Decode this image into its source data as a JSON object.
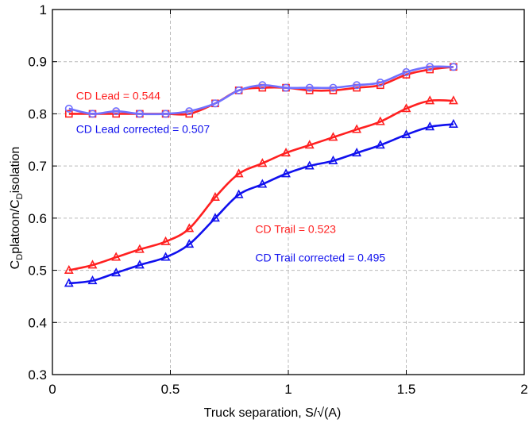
{
  "chart_data": {
    "type": "line",
    "title": "",
    "xlabel": "Truck separation,   S/√(A)",
    "ylabel": "CDplatoon/CDisolation",
    "ylabel_parts": {
      "c1": "C",
      "s1": "D",
      "mid": "platoon/C",
      "s2": "D",
      "end": "isolation"
    },
    "xlim": [
      0,
      2
    ],
    "ylim": [
      0.3,
      1.0
    ],
    "xticks": [
      0,
      0.5,
      1,
      1.5,
      2
    ],
    "xtick_labels": [
      "0",
      "0.5",
      "1",
      "1.5",
      "2"
    ],
    "yticks": [
      0.3,
      0.4,
      0.5,
      0.6,
      0.7,
      0.8,
      0.9,
      1.0
    ],
    "ytick_labels": [
      "0.3",
      "0.4",
      "0.5",
      "0.6",
      "0.7",
      "0.8",
      "0.9",
      "1"
    ],
    "grid": true,
    "colors": {
      "red": "#ff2020",
      "blue": "#1010ee",
      "lightblue": "#7070ff",
      "grid": "#bbbbbb"
    },
    "series": [
      {
        "id": "lead",
        "color": "red",
        "marker": "square",
        "x": [
          0.07,
          0.17,
          0.27,
          0.37,
          0.48,
          0.58,
          0.69,
          0.79,
          0.89,
          0.99,
          1.09,
          1.19,
          1.29,
          1.39,
          1.5,
          1.6,
          1.7
        ],
        "y": [
          0.8,
          0.8,
          0.8,
          0.8,
          0.8,
          0.8,
          0.82,
          0.845,
          0.85,
          0.85,
          0.845,
          0.845,
          0.85,
          0.855,
          0.875,
          0.885,
          0.89
        ]
      },
      {
        "id": "lead-corrected",
        "color": "lightblue",
        "marker": "circle",
        "x": [
          0.07,
          0.17,
          0.27,
          0.37,
          0.48,
          0.58,
          0.69,
          0.79,
          0.89,
          0.99,
          1.09,
          1.19,
          1.29,
          1.39,
          1.5,
          1.6,
          1.7
        ],
        "y": [
          0.81,
          0.8,
          0.805,
          0.8,
          0.8,
          0.805,
          0.82,
          0.845,
          0.855,
          0.85,
          0.85,
          0.85,
          0.855,
          0.86,
          0.88,
          0.89,
          0.89
        ]
      },
      {
        "id": "trail",
        "color": "red",
        "marker": "triangle",
        "x": [
          0.07,
          0.17,
          0.27,
          0.37,
          0.48,
          0.58,
          0.69,
          0.79,
          0.89,
          0.99,
          1.09,
          1.19,
          1.29,
          1.39,
          1.5,
          1.6,
          1.7
        ],
        "y": [
          0.5,
          0.51,
          0.525,
          0.54,
          0.555,
          0.58,
          0.64,
          0.685,
          0.705,
          0.725,
          0.74,
          0.755,
          0.77,
          0.785,
          0.81,
          0.825,
          0.825
        ]
      },
      {
        "id": "trail-corrected",
        "color": "blue",
        "marker": "triangle",
        "x": [
          0.07,
          0.17,
          0.27,
          0.37,
          0.48,
          0.58,
          0.69,
          0.79,
          0.89,
          0.99,
          1.09,
          1.19,
          1.29,
          1.39,
          1.5,
          1.6,
          1.7
        ],
        "y": [
          0.475,
          0.48,
          0.495,
          0.51,
          0.525,
          0.55,
          0.6,
          0.645,
          0.665,
          0.685,
          0.7,
          0.71,
          0.725,
          0.74,
          0.76,
          0.775,
          0.78
        ]
      }
    ],
    "annotations": [
      {
        "text": "CD Lead =   0.544",
        "color": "red",
        "x": 0.1,
        "y": 0.827
      },
      {
        "text": "CD Lead corrected = 0.507",
        "color": "blue",
        "x": 0.1,
        "y": 0.763
      },
      {
        "text": "CD Trail = 0.523",
        "color": "red",
        "x": 0.86,
        "y": 0.572
      },
      {
        "text": "CD Trail corrected =  0.495",
        "color": "blue",
        "x": 0.86,
        "y": 0.517
      }
    ]
  }
}
